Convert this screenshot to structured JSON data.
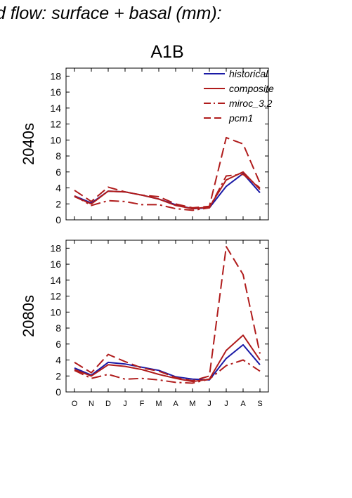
{
  "figure": {
    "header": "d flow: surface + basal (mm):",
    "scenario": "A1B"
  },
  "colors": {
    "historical": "#1a1aa6",
    "model": "#b01c1c",
    "axis": "#000000"
  },
  "chart_data": [
    {
      "type": "line",
      "panel_label": "2040s",
      "categories": [
        "O",
        "N",
        "D",
        "J",
        "F",
        "M",
        "A",
        "M",
        "J",
        "J",
        "A",
        "S"
      ],
      "ylim": [
        0,
        19
      ],
      "yticks": [
        0,
        2,
        4,
        6,
        8,
        10,
        12,
        14,
        16,
        18
      ],
      "legend_position": "top-right",
      "series": [
        {
          "name": "historical",
          "style": "solid",
          "color": "historical",
          "values": [
            3.0,
            2.1,
            3.6,
            3.5,
            3.1,
            2.6,
            1.9,
            1.4,
            1.5,
            4.2,
            5.8,
            3.4
          ]
        },
        {
          "name": "composite",
          "style": "solid",
          "color": "model",
          "values": [
            2.9,
            2.0,
            3.6,
            3.5,
            3.1,
            2.6,
            1.8,
            1.4,
            1.6,
            5.0,
            6.0,
            3.8
          ]
        },
        {
          "name": "miroc_3.2",
          "style": "dashdot",
          "color": "model",
          "values": [
            3.0,
            1.8,
            2.4,
            2.3,
            1.9,
            1.9,
            1.4,
            1.2,
            1.5,
            5.5,
            5.7,
            4.0
          ]
        },
        {
          "name": "pcm1",
          "style": "dash",
          "color": "model",
          "values": [
            3.7,
            2.3,
            4.1,
            3.5,
            3.1,
            2.9,
            2.0,
            1.5,
            1.7,
            10.3,
            9.5,
            4.6
          ]
        }
      ]
    },
    {
      "type": "line",
      "panel_label": "2080s",
      "categories": [
        "O",
        "N",
        "D",
        "J",
        "F",
        "M",
        "A",
        "M",
        "J",
        "J",
        "A",
        "S"
      ],
      "ylim": [
        0,
        19
      ],
      "yticks": [
        0,
        2,
        4,
        6,
        8,
        10,
        12,
        14,
        16,
        18
      ],
      "series": [
        {
          "name": "historical",
          "style": "solid",
          "color": "historical",
          "values": [
            3.0,
            2.1,
            3.7,
            3.5,
            3.1,
            2.7,
            1.9,
            1.6,
            1.5,
            4.2,
            5.9,
            3.4
          ]
        },
        {
          "name": "composite",
          "style": "solid",
          "color": "model",
          "values": [
            2.8,
            2.0,
            3.4,
            3.2,
            2.8,
            2.2,
            1.7,
            1.3,
            1.6,
            5.2,
            7.1,
            4.0
          ]
        },
        {
          "name": "miroc_3.2",
          "style": "dashdot",
          "color": "model",
          "values": [
            2.7,
            1.7,
            2.2,
            1.6,
            1.7,
            1.5,
            1.2,
            1.1,
            1.6,
            3.3,
            4.0,
            2.6
          ]
        },
        {
          "name": "pcm1",
          "style": "dash",
          "color": "model",
          "values": [
            3.7,
            2.4,
            4.7,
            3.8,
            3.0,
            2.6,
            1.8,
            1.4,
            2.0,
            18.2,
            14.7,
            4.8
          ]
        }
      ]
    }
  ]
}
